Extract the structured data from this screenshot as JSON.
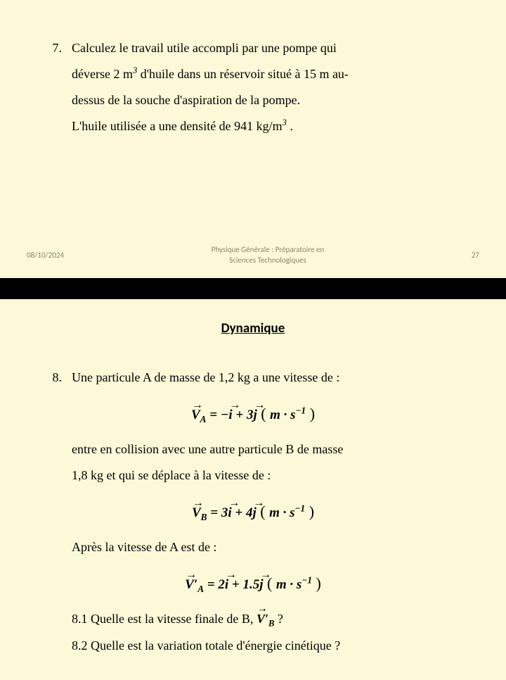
{
  "slide1": {
    "problem_number": "7.",
    "text_line1": "Calculez le travail utile accompli  par  une pompe qui",
    "text_line2a": "déverse 2 m",
    "text_line2_sup": "3",
    "text_line2b": "  d'huile dans un réservoir situé à 15 m  au-",
    "text_line3": "dessus de la souche d'aspiration de la pompe.",
    "text_line4a": "L'huile utilisée a une densité de 941 kg/m",
    "text_line4_sup": "3",
    "text_line4b": " .",
    "footer_date": "08/10/2024",
    "footer_center_l1": "Physique Générale : Préparatoire en",
    "footer_center_l2": "Sciences Technologiques",
    "footer_page": "27"
  },
  "slide2": {
    "section_title": "Dynamique",
    "problem_number": "8.",
    "text_line1": "Une particule A de masse de 1,2 kg  a une vitesse de :",
    "eq1": {
      "sym": "V",
      "sub": "A",
      "eq": " = −",
      "i": "i",
      "plus": " + 3",
      "j": "j",
      "paren_open": " ( ",
      "unit1": "m",
      "dot": " · ",
      "unit2": "s",
      "exp": "−1",
      "paren_close": " )"
    },
    "text_line2": "entre en collision avec une autre particule B de masse",
    "text_line3": "1,8 kg  et qui se déplace à la vitesse de :",
    "eq2": {
      "sym": "V",
      "sub": "B",
      "eq": " = 3",
      "i": "i",
      "plus": " + 4",
      "j": "j"
    },
    "text_line4": "Après la vitesse de A  est de :",
    "eq3": {
      "sym": "V′",
      "sub": "A",
      "eq": " = 2",
      "i": "i",
      "plus": " + 1.5",
      "j": "j"
    },
    "q81a": "8.1 Quelle est la vitesse finale de B,  ",
    "q81_sym": "V′",
    "q81_sub": "B",
    "q81b": "  ?",
    "q82": "8.2 Quelle est la variation totale d'énergie cinétique ?"
  },
  "colors": {
    "slide_bg": "#fdf9d8",
    "divider_bg": "#000000",
    "text": "#000000",
    "footer_text": "#888866"
  }
}
